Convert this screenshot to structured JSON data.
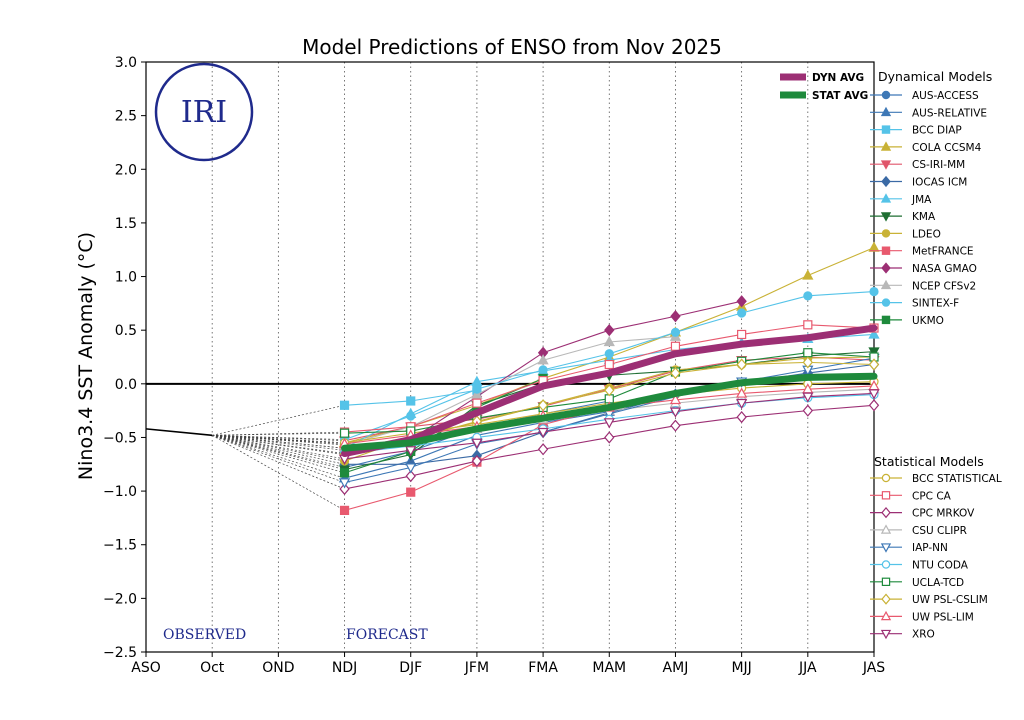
{
  "chart_data": {
    "type": "line",
    "title": "Model Predictions of ENSO from Nov 2025",
    "xlabel": "",
    "ylabel": "Nino3.4 SST Anomaly (°C)",
    "categories": [
      "ASO",
      "Oct",
      "OND",
      "NDJ",
      "DJF",
      "JFM",
      "FMA",
      "MAM",
      "AMJ",
      "MJJ",
      "JJA",
      "JAS"
    ],
    "ylim": [
      -2.5,
      3.0
    ],
    "yticks": [
      "3.0",
      "2.5",
      "2.0",
      "1.5",
      "1.0",
      "0.5",
      "0.0",
      "−0.5",
      "−1.0",
      "−1.5",
      "−2.0",
      "−2.5"
    ],
    "yvalues": [
      3.0,
      2.5,
      2.0,
      1.5,
      1.0,
      0.5,
      0.0,
      -0.5,
      -1.0,
      -1.5,
      -2.0,
      -2.5
    ],
    "observed": {
      "label": "OBSERVED",
      "x": [
        0,
        1
      ],
      "values": [
        -0.42,
        -0.48
      ]
    },
    "forecast_label": "FORECAST",
    "logo_text": "IRI",
    "averages": [
      {
        "name": "DYN AVG",
        "color": "#9c2f74",
        "start": 3,
        "values": [
          -0.65,
          -0.52,
          -0.27,
          -0.02,
          0.1,
          0.28,
          0.37,
          0.43,
          0.52
        ]
      },
      {
        "name": "STAT AVG",
        "color": "#1e8a3c",
        "start": 3,
        "values": [
          -0.6,
          -0.55,
          -0.42,
          -0.32,
          -0.22,
          -0.09,
          0.01,
          0.06,
          0.07
        ]
      }
    ],
    "dynamical_title": "Dynamical Models",
    "dynamical": [
      {
        "name": "AUS-ACCESS",
        "color": "#3e78b6",
        "marker": "circle",
        "fill": true,
        "start": 3,
        "values": [
          -0.78,
          -0.63,
          -0.41,
          -0.28,
          -0.16
        ]
      },
      {
        "name": "AUS-RELATIVE",
        "color": "#3e78b6",
        "marker": "triangle",
        "fill": true,
        "start": 3,
        "values": [
          -0.88,
          -0.72,
          -0.48,
          -0.36,
          -0.26
        ]
      },
      {
        "name": "BCC DIAP",
        "color": "#55c3e8",
        "marker": "square",
        "fill": true,
        "start": 3,
        "values": [
          -0.2,
          -0.16,
          -0.06
        ]
      },
      {
        "name": "COLA CCSM4",
        "color": "#c9b236",
        "marker": "triangle",
        "fill": true,
        "start": 3,
        "values": [
          -0.55,
          -0.4,
          -0.2,
          0.05,
          0.25,
          0.48,
          0.72,
          1.01,
          1.27
        ]
      },
      {
        "name": "CS-IRI-MM",
        "color": "#e0566b",
        "marker": "triangle-down",
        "fill": true,
        "start": 3,
        "values": [
          -0.53,
          -0.4,
          -0.33,
          -0.21,
          -0.05,
          0.12,
          0.22,
          0.25,
          0.22
        ]
      },
      {
        "name": "IOCAS ICM",
        "color": "#3b6aa5",
        "marker": "diamond",
        "fill": true,
        "start": 3,
        "values": [
          -0.75,
          -0.75,
          -0.67,
          -0.45,
          -0.27,
          -0.1,
          0.01,
          0.1,
          0.18
        ]
      },
      {
        "name": "JMA",
        "color": "#55c3e8",
        "marker": "triangle",
        "fill": true,
        "start": 3,
        "values": [
          -0.6,
          -0.28,
          0.02,
          0.12,
          0.22,
          0.32,
          0.38,
          0.42,
          0.46
        ]
      },
      {
        "name": "KMA",
        "color": "#1e6e32",
        "marker": "triangle-down",
        "fill": true,
        "start": 3,
        "values": [
          -0.8,
          -0.66,
          -0.2,
          0.0,
          0.08,
          0.12,
          0.18,
          0.26,
          0.3
        ]
      },
      {
        "name": "LDEO",
        "color": "#c9b236",
        "marker": "circle",
        "fill": true,
        "start": 3,
        "values": [
          -0.72,
          -0.5,
          -0.36,
          -0.2,
          -0.04,
          0.13,
          0.18,
          0.24,
          0.25
        ]
      },
      {
        "name": "MetFRANCE",
        "color": "#e8596e",
        "marker": "square",
        "fill": true,
        "start": 3,
        "values": [
          -1.18,
          -1.01,
          -0.73,
          -0.38,
          -0.22
        ]
      },
      {
        "name": "NASA GMAO",
        "color": "#9c2f74",
        "marker": "diamond",
        "fill": true,
        "start": 3,
        "values": [
          -0.62,
          -0.52,
          -0.12,
          0.29,
          0.5,
          0.63,
          0.77
        ]
      },
      {
        "name": "NCEP CFSv2",
        "color": "#b8b8b8",
        "marker": "triangle",
        "fill": true,
        "start": 3,
        "values": [
          -0.57,
          -0.4,
          -0.1,
          0.22,
          0.39,
          0.44
        ]
      },
      {
        "name": "SINTEX-F",
        "color": "#55c3e8",
        "marker": "circle",
        "fill": true,
        "start": 3,
        "values": [
          -0.52,
          -0.3,
          -0.05,
          0.13,
          0.28,
          0.48,
          0.66,
          0.82,
          0.86
        ]
      },
      {
        "name": "UKMO",
        "color": "#1e8a3c",
        "marker": "square",
        "fill": true,
        "start": 3,
        "values": [
          -0.83,
          -0.63,
          -0.22,
          0.05
        ]
      }
    ],
    "statistical_title": "Statistical Models",
    "statistical": [
      {
        "name": "BCC STATISTICAL",
        "color": "#c9b236",
        "marker": "circle",
        "fill": false,
        "start": 3,
        "values": [
          -0.55,
          -0.46,
          -0.38,
          -0.28,
          -0.18,
          -0.1,
          -0.04,
          0.0,
          0.02
        ]
      },
      {
        "name": "CPC CA",
        "color": "#e8596e",
        "marker": "square",
        "fill": false,
        "start": 3,
        "values": [
          -0.45,
          -0.4,
          -0.18,
          0.03,
          0.18,
          0.35,
          0.46,
          0.55,
          0.52
        ]
      },
      {
        "name": "CPC MRKOV",
        "color": "#9c2f74",
        "marker": "diamond",
        "fill": false,
        "start": 3,
        "values": [
          -0.98,
          -0.86,
          -0.72,
          -0.61,
          -0.5,
          -0.39,
          -0.31,
          -0.25,
          -0.2
        ]
      },
      {
        "name": "CSU CLIPR",
        "color": "#b8b8b8",
        "marker": "triangle",
        "fill": false,
        "start": 3,
        "values": [
          -0.6,
          -0.52,
          -0.42,
          -0.33,
          -0.25,
          -0.18,
          -0.12,
          -0.08,
          -0.05
        ]
      },
      {
        "name": "IAP-NN",
        "color": "#3e78b6",
        "marker": "triangle-down",
        "fill": false,
        "start": 3,
        "values": [
          -0.92,
          -0.78,
          -0.56,
          -0.45,
          -0.28,
          -0.12,
          0.02,
          0.13,
          0.24
        ]
      },
      {
        "name": "NTU CODA",
        "color": "#55c3e8",
        "marker": "circle",
        "fill": false,
        "start": 3,
        "values": [
          -0.65,
          -0.58,
          -0.5,
          -0.42,
          -0.33,
          -0.25,
          -0.18,
          -0.13,
          -0.1
        ]
      },
      {
        "name": "UCLA-TCD",
        "color": "#1e8a3c",
        "marker": "square",
        "fill": false,
        "start": 3,
        "values": [
          -0.46,
          -0.44,
          -0.32,
          -0.22,
          -0.14,
          0.11,
          0.21,
          0.29,
          0.25
        ]
      },
      {
        "name": "UW PSL-CSLIM",
        "color": "#c9b236",
        "marker": "diamond",
        "fill": false,
        "start": 3,
        "values": [
          -0.66,
          -0.52,
          -0.35,
          -0.2,
          -0.06,
          0.1,
          0.18,
          0.2,
          0.18
        ]
      },
      {
        "name": "UW PSL-LIM",
        "color": "#e8596e",
        "marker": "triangle",
        "fill": false,
        "start": 3,
        "values": [
          -0.56,
          -0.48,
          -0.4,
          -0.3,
          -0.22,
          -0.15,
          -0.09,
          -0.05,
          -0.02
        ]
      },
      {
        "name": "XRO",
        "color": "#9c2f74",
        "marker": "triangle-down",
        "fill": false,
        "start": 3,
        "values": [
          -0.7,
          -0.62,
          -0.55,
          -0.45,
          -0.36,
          -0.26,
          -0.18,
          -0.12,
          -0.09
        ]
      }
    ]
  }
}
